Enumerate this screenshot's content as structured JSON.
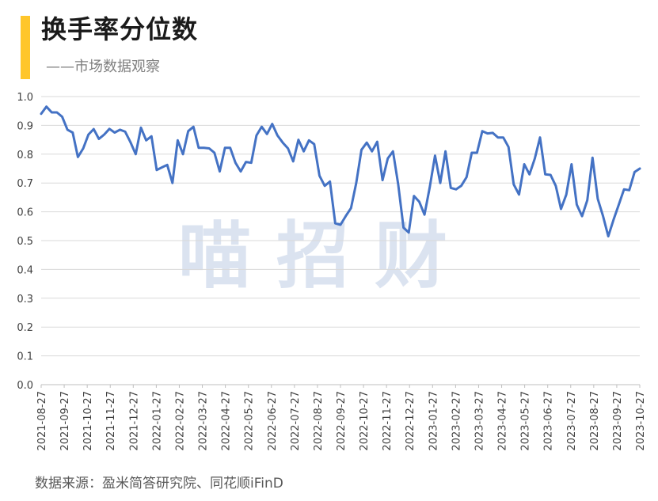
{
  "header": {
    "title": "换手率分位数",
    "subtitle": "——市场数据观察"
  },
  "source": "数据来源：盈米简答研究院、同花顺iFinD",
  "watermark": "喵 招 财",
  "colors": {
    "line": "#4472C4",
    "accent": "#FFC62B"
  },
  "chart_data": {
    "type": "line",
    "title": "换手率分位数",
    "ylim": [
      0,
      1.0
    ],
    "yticks": [
      "0.0",
      "0.1",
      "0.2",
      "0.3",
      "0.4",
      "0.5",
      "0.6",
      "0.7",
      "0.8",
      "0.9",
      "1.0"
    ],
    "xtick_labels": [
      "2021-08-27",
      "2021-09-27",
      "2021-10-27",
      "2021-11-27",
      "2021-12-27",
      "2022-01-27",
      "2022-02-27",
      "2022-03-27",
      "2022-04-27",
      "2022-05-27",
      "2022-06-27",
      "2022-07-27",
      "2022-08-27",
      "2022-09-27",
      "2022-10-27",
      "2022-11-27",
      "2022-12-27",
      "2023-01-27",
      "2023-02-27",
      "2023-03-27",
      "2023-04-27",
      "2023-05-27",
      "2023-06-27",
      "2023-07-27",
      "2023-08-27",
      "2023-09-27",
      "2023-10-27"
    ],
    "grid": true,
    "series": [
      {
        "values": [
          0.94,
          0.965,
          0.945,
          0.945,
          0.93,
          0.885,
          0.875,
          0.79,
          0.82,
          0.868,
          0.887,
          0.853,
          0.868,
          0.888,
          0.875,
          0.885,
          0.878,
          0.842,
          0.8,
          0.892,
          0.848,
          0.862,
          0.745,
          0.754,
          0.763,
          0.7,
          0.848,
          0.8,
          0.88,
          0.895,
          0.822,
          0.822,
          0.82,
          0.805,
          0.74,
          0.822,
          0.822,
          0.77,
          0.74,
          0.773,
          0.77,
          0.865,
          0.895,
          0.87,
          0.905,
          0.865,
          0.84,
          0.82,
          0.775,
          0.85,
          0.81,
          0.848,
          0.835,
          0.725,
          0.69,
          0.705,
          0.56,
          0.555,
          0.585,
          0.613,
          0.7,
          0.815,
          0.84,
          0.81,
          0.843,
          0.71,
          0.785,
          0.81,
          0.695,
          0.545,
          0.528,
          0.655,
          0.635,
          0.59,
          0.685,
          0.795,
          0.7,
          0.81,
          0.683,
          0.678,
          0.69,
          0.72,
          0.805,
          0.805,
          0.88,
          0.872,
          0.874,
          0.858,
          0.858,
          0.825,
          0.695,
          0.66,
          0.765,
          0.73,
          0.785,
          0.858,
          0.73,
          0.728,
          0.69,
          0.61,
          0.66,
          0.765,
          0.625,
          0.585,
          0.64,
          0.788,
          0.645,
          0.585,
          0.515,
          0.572,
          0.625,
          0.678,
          0.675,
          0.738,
          0.75
        ]
      }
    ]
  }
}
